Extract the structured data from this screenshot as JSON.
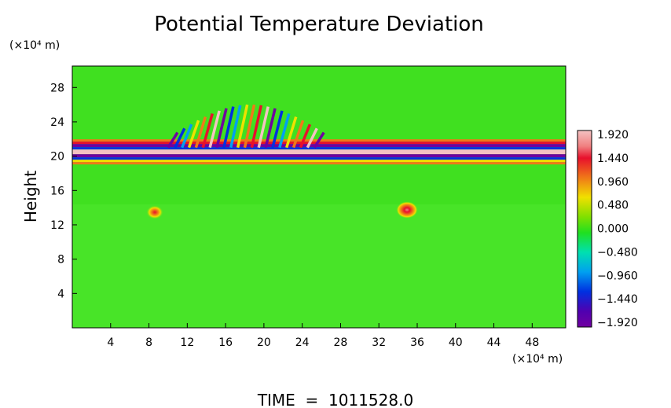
{
  "chart_data": {
    "type": "heatmap",
    "title": "Potential Temperature Deviation",
    "ylabel": "Height",
    "y_unit": "(×10⁴ m)",
    "x_unit": "(×10⁴ m)",
    "xlabel": "",
    "x_ticks": [
      4,
      8,
      12,
      16,
      20,
      24,
      28,
      32,
      36,
      40,
      44,
      48
    ],
    "y_ticks": [
      4,
      8,
      12,
      16,
      20,
      24,
      28
    ],
    "xlim": [
      0,
      51.5
    ],
    "ylim": [
      0,
      30.5
    ],
    "colorbar": {
      "labels": [
        "1.920",
        "1.440",
        "0.960",
        "0.480",
        "0.000",
        "−0.480",
        "−0.960",
        "−1.440",
        "−1.920"
      ],
      "values": [
        1.92,
        1.44,
        0.96,
        0.48,
        0.0,
        -0.48,
        -0.96,
        -1.44,
        -1.92
      ],
      "colors_top_to_bottom": [
        "#f4c2c2",
        "#e8102c",
        "#f07818",
        "#f0e000",
        "#80e000",
        "#20e020",
        "#00e0b0",
        "#00a0f0",
        "#0030e0",
        "#5000b0",
        "#7000a0"
      ]
    },
    "background_value": 0.1,
    "features": [
      {
        "kind": "band",
        "y_center": 20.5,
        "x_range": [
          0,
          51.5
        ],
        "amplitude": "±1.92"
      },
      {
        "kind": "wave_packet",
        "x_range": [
          10,
          26
        ],
        "y_range": [
          21,
          26
        ]
      },
      {
        "kind": "hot_spot",
        "x": 8.5,
        "y": 12.5,
        "value": 1.0
      },
      {
        "kind": "hot_spot",
        "x": 35,
        "y": 12.5,
        "value": 1.6
      }
    ]
  },
  "footer": {
    "time_text": "TIME  =  1011528.0"
  }
}
